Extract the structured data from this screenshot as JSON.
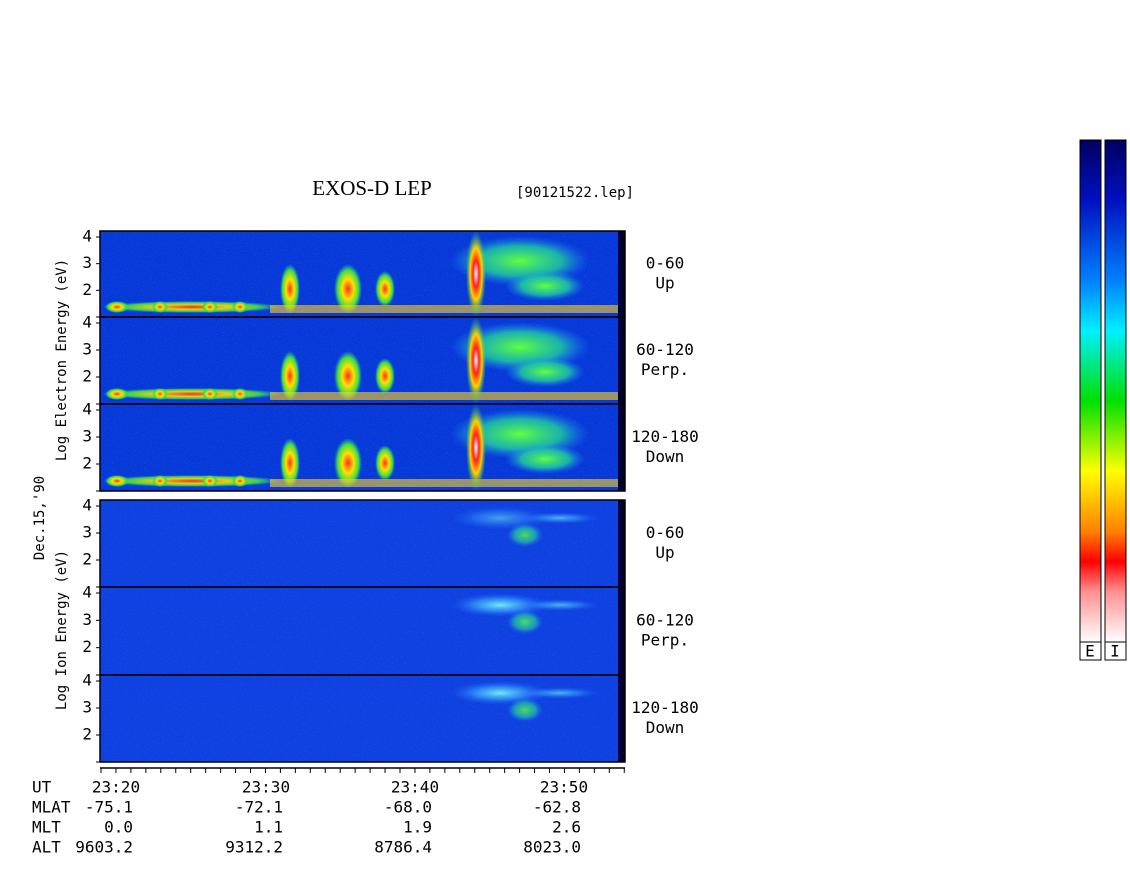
{
  "title": "EXOS-D LEP",
  "file": "[90121522.lep]",
  "date": "Dec.15,'90",
  "electron_ylabel": "Log  Electron  Energy (eV)",
  "ion_ylabel": "Log  Ion  Energy (eV)",
  "energy_ticks": [
    "2",
    "3",
    "4"
  ],
  "panels": [
    {
      "species": "electron",
      "angle": "0-60",
      "direction": "Up"
    },
    {
      "species": "electron",
      "angle": "60-120",
      "direction": "Perp."
    },
    {
      "species": "electron",
      "angle": "120-180",
      "direction": "Down"
    },
    {
      "species": "ion",
      "angle": "0-60",
      "direction": "Up"
    },
    {
      "species": "ion",
      "angle": "60-120",
      "direction": "Perp."
    },
    {
      "species": "ion",
      "angle": "120-180",
      "direction": "Down"
    }
  ],
  "orbit": {
    "rows": [
      [
        "UT",
        "23:20",
        "23:30",
        "23:40",
        "23:50"
      ],
      [
        "MLAT",
        "-75.1",
        "-72.1",
        "-68.0",
        "-62.8"
      ],
      [
        "MLT",
        "0.0",
        "1.1",
        "1.9",
        "2.6"
      ],
      [
        "ALT",
        "9603.2",
        "9312.2",
        "8786.4",
        "8023.0"
      ]
    ]
  },
  "colorbar_labels": [
    "E",
    "I"
  ]
}
